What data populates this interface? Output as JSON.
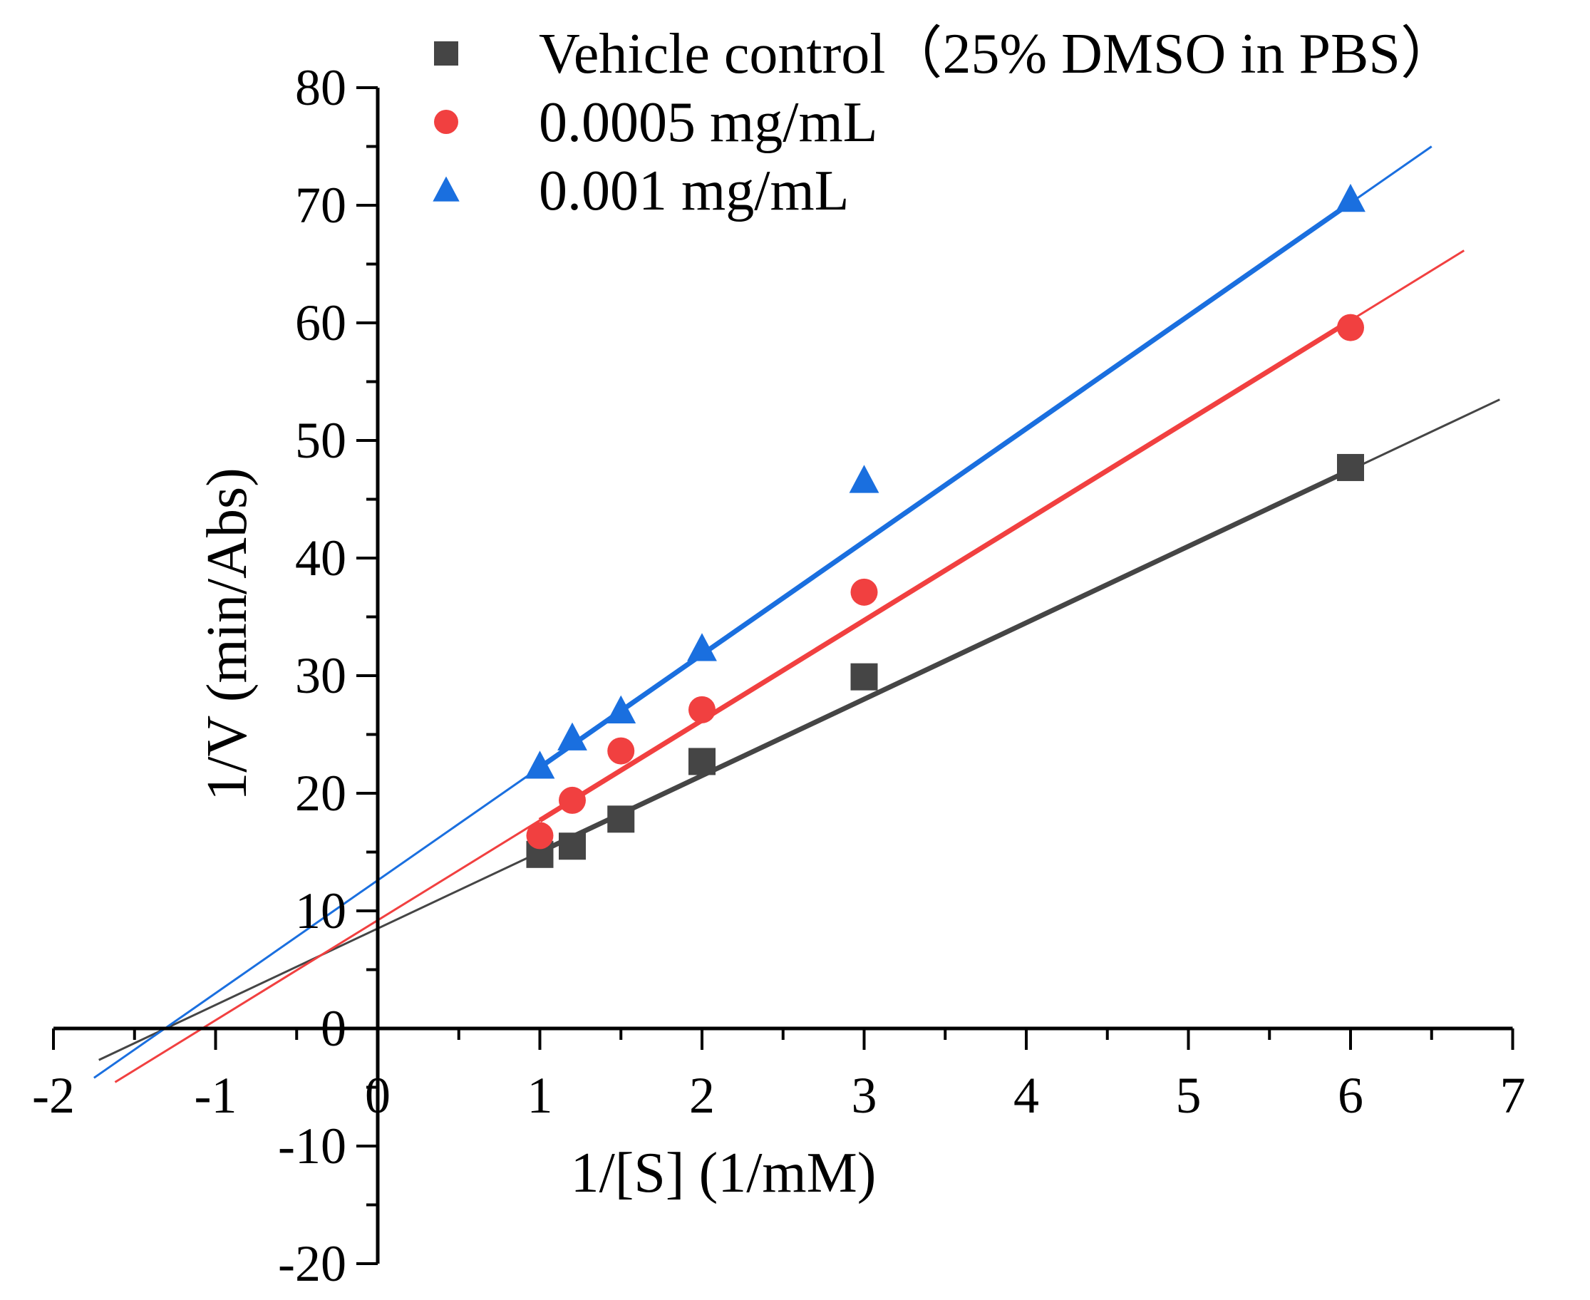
{
  "chart_data": {
    "type": "scatter",
    "xlabel": "1/[S] (1/mM)",
    "ylabel": "1/V (min/Abs)",
    "xlim": [
      -2,
      7
    ],
    "ylim": [
      -20,
      80
    ],
    "x_ticks": [
      "-2",
      "-1",
      "0",
      "1",
      "2",
      "3",
      "4",
      "5",
      "6",
      "7"
    ],
    "y_ticks": [
      "-20",
      "-10",
      "0",
      "10",
      "20",
      "30",
      "40",
      "50",
      "60",
      "70",
      "80"
    ],
    "axes_cross_at_origin": true,
    "grid": false,
    "legend_position": "top",
    "series": [
      {
        "name": "Vehicle control（25% DMSO in PBS）",
        "marker": "square",
        "color": "#454545",
        "x": [
          1,
          1.2,
          1.5,
          2,
          3,
          6
        ],
        "y": [
          14.8,
          15.5,
          17.8,
          22.7,
          29.9,
          47.7
        ],
        "fit": {
          "slope": 6.5,
          "intercept": 8.5,
          "x_range": [
            -1.72,
            6.92
          ],
          "thick_range": [
            1,
            6
          ]
        }
      },
      {
        "name": "0.0005 mg/mL",
        "marker": "circle",
        "color": "#f14040",
        "x": [
          1,
          1.2,
          1.5,
          2,
          3,
          6
        ],
        "y": [
          16.4,
          19.4,
          23.6,
          27.1,
          37.1,
          59.6
        ],
        "fit": {
          "slope": 8.5,
          "intercept": 9.2,
          "x_range": [
            -1.62,
            6.7
          ],
          "thick_range": [
            1,
            6
          ]
        }
      },
      {
        "name": "0.001 mg/mL",
        "marker": "triangle",
        "color": "#1a6fdf",
        "x": [
          1,
          1.2,
          1.5,
          2,
          3,
          6
        ],
        "y": [
          22.3,
          24.7,
          27.0,
          32.3,
          46.6,
          70.5
        ],
        "fit": {
          "slope": 9.6,
          "intercept": 12.6,
          "x_range": [
            -1.75,
            6.5
          ],
          "thick_range": [
            1,
            6
          ]
        }
      }
    ]
  }
}
